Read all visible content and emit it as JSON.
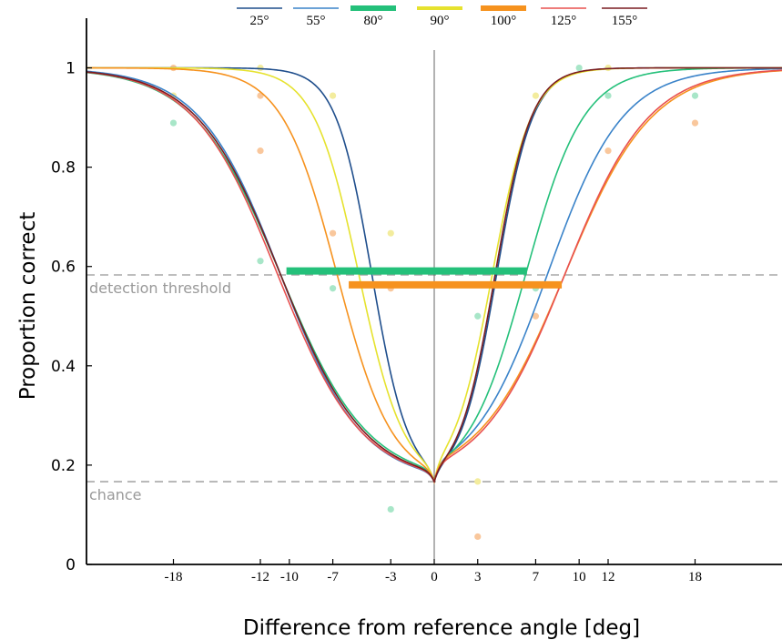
{
  "chart_data": {
    "type": "line",
    "xlabel": "Difference from reference angle [deg]",
    "ylabel": "Proportion correct",
    "xlim": [
      -24,
      24
    ],
    "ylim": [
      0,
      1.1
    ],
    "xticks": [
      -18,
      -12,
      -10,
      -7,
      -3,
      0,
      3,
      7,
      10,
      12,
      18
    ],
    "yticks": [
      0,
      0.2,
      0.4,
      0.6,
      0.8,
      1
    ],
    "grid": false,
    "legend_position": "top-center",
    "guide_lines": [
      {
        "label": "detection threshold",
        "y": 0.583
      },
      {
        "label": "chance",
        "y": 0.1667
      }
    ],
    "series": [
      {
        "name": "25°",
        "color": "#1f4e8c",
        "line_width": 1.6,
        "left_mid": 4.3,
        "left_sigma": 1.25,
        "right_mid": 4.3,
        "right_sigma": 1.25
      },
      {
        "name": "55°",
        "color": "#3a83c9",
        "line_width": 1.6,
        "left_mid": 10.6,
        "left_sigma": 2.8,
        "right_mid": 7.8,
        "right_sigma": 2.6
      },
      {
        "name": "80°",
        "color": "#24c07a",
        "line_width": 6,
        "left_mid": 10.6,
        "left_sigma": 3.0,
        "right_mid": 6.3,
        "right_sigma": 2.0
      },
      {
        "name": "90°",
        "color": "#e6e22e",
        "line_width": 4,
        "left_mid": 5.2,
        "left_sigma": 1.55,
        "right_mid": 4.0,
        "right_sigma": 1.35
      },
      {
        "name": "100°",
        "color": "#f6921e",
        "line_width": 6,
        "left_mid": 6.7,
        "left_sigma": 1.9,
        "right_mid": 9.0,
        "right_sigma": 3.0
      },
      {
        "name": "125°",
        "color": "#e8504f",
        "line_width": 1.6,
        "left_mid": 10.8,
        "left_sigma": 2.9,
        "right_mid": 9.0,
        "right_sigma": 2.9
      },
      {
        "name": "155°",
        "color": "#7a1c20",
        "line_width": 1.6,
        "left_mid": 10.6,
        "left_sigma": 2.9,
        "right_mid": 4.2,
        "right_sigma": 1.25
      }
    ],
    "threshold_bars": [
      {
        "series": "80°",
        "color": "#24c07a",
        "x_start": -10.2,
        "x_end": 6.4,
        "y": 0.591
      },
      {
        "series": "100°",
        "color": "#f6921e",
        "x_start": -5.9,
        "x_end": 8.8,
        "y": 0.563
      }
    ],
    "scatter_points": [
      {
        "x": -18,
        "y": 1.0,
        "color": "#f9c79c"
      },
      {
        "x": -18,
        "y": 0.944,
        "color": "#f3ec9d"
      },
      {
        "x": -18,
        "y": 0.889,
        "color": "#a8e6c8"
      },
      {
        "x": -12,
        "y": 1.0,
        "color": "#f3ec9d"
      },
      {
        "x": -12,
        "y": 0.944,
        "color": "#f9c79c"
      },
      {
        "x": -12,
        "y": 0.833,
        "color": "#f9c79c"
      },
      {
        "x": -12,
        "y": 0.611,
        "color": "#a8e6c8"
      },
      {
        "x": -7,
        "y": 0.944,
        "color": "#f3ec9d"
      },
      {
        "x": -7,
        "y": 0.667,
        "color": "#f9c79c"
      },
      {
        "x": -7,
        "y": 0.556,
        "color": "#a8e6c8"
      },
      {
        "x": -3,
        "y": 0.667,
        "color": "#f3ec9d"
      },
      {
        "x": -3,
        "y": 0.556,
        "color": "#f9c79c"
      },
      {
        "x": -3,
        "y": 0.111,
        "color": "#a8e6c8"
      },
      {
        "x": 3,
        "y": 0.5,
        "color": "#a8e6c8"
      },
      {
        "x": 3,
        "y": 0.167,
        "color": "#f3ec9d"
      },
      {
        "x": 3,
        "y": 0.056,
        "color": "#f9c79c"
      },
      {
        "x": 7,
        "y": 0.944,
        "color": "#f3ec9d"
      },
      {
        "x": 7,
        "y": 0.556,
        "color": "#a8e6c8"
      },
      {
        "x": 7,
        "y": 0.5,
        "color": "#f9c79c"
      },
      {
        "x": 10,
        "y": 1.0,
        "color": "#a8e6c8"
      },
      {
        "x": 12,
        "y": 1.0,
        "color": "#f3ec9d"
      },
      {
        "x": 12,
        "y": 0.944,
        "color": "#a8e6c8"
      },
      {
        "x": 12,
        "y": 0.833,
        "color": "#f9c79c"
      },
      {
        "x": 18,
        "y": 0.944,
        "color": "#a8e6c8"
      },
      {
        "x": 18,
        "y": 0.889,
        "color": "#f9c79c"
      }
    ]
  }
}
